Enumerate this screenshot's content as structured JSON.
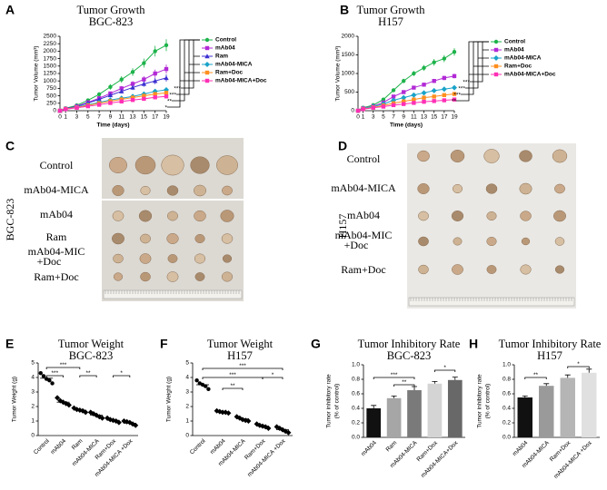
{
  "chart_data": [
    {
      "type": "line",
      "panel": "A",
      "title": "Tumor Growth",
      "subtitle": "BGC-823",
      "xlabel": "Time (days)",
      "ylabel": "Tumor Volume (mm³)",
      "x": [
        0,
        1,
        3,
        5,
        7,
        9,
        11,
        13,
        15,
        17,
        19
      ],
      "xlim": [
        0,
        19
      ],
      "xticks": [
        0,
        1,
        3,
        5,
        7,
        9,
        11,
        13,
        15,
        17,
        19
      ],
      "ylim": [
        0,
        2500
      ],
      "yticks": [
        0,
        250,
        500,
        750,
        1000,
        1250,
        1500,
        1750,
        2000,
        2250,
        2500
      ],
      "series": [
        {
          "name": "Control",
          "color": "#1db34a",
          "marker": "circle",
          "values": [
            0,
            80,
            180,
            350,
            550,
            800,
            1050,
            1300,
            1600,
            2000,
            2200
          ],
          "errors": [
            0,
            10,
            25,
            45,
            70,
            90,
            110,
            130,
            150,
            180,
            200
          ]
        },
        {
          "name": "mAb04",
          "color": "#b22ad6",
          "marker": "square",
          "values": [
            0,
            70,
            150,
            280,
            420,
            580,
            750,
            900,
            1050,
            1250,
            1400
          ],
          "errors": [
            0,
            10,
            20,
            35,
            50,
            65,
            80,
            95,
            110,
            130,
            150
          ]
        },
        {
          "name": "Ram",
          "color": "#3b2fd1",
          "marker": "triangle",
          "values": [
            0,
            70,
            140,
            260,
            380,
            520,
            650,
            780,
            900,
            1000,
            1100
          ],
          "errors": [
            0,
            10,
            20,
            30,
            45,
            60,
            70,
            85,
            95,
            110,
            120
          ]
        },
        {
          "name": "mAb04-MICA",
          "color": "#1aa3c9",
          "marker": "diamond",
          "values": [
            0,
            60,
            120,
            200,
            280,
            360,
            420,
            480,
            560,
            650,
            700
          ],
          "errors": [
            0,
            8,
            15,
            25,
            35,
            40,
            45,
            55,
            60,
            70,
            80
          ]
        },
        {
          "name": "Ram+Doc",
          "color": "#ff8f1f",
          "marker": "square",
          "values": [
            0,
            60,
            110,
            180,
            250,
            320,
            380,
            440,
            500,
            560,
            600
          ],
          "errors": [
            0,
            8,
            15,
            20,
            30,
            35,
            40,
            45,
            55,
            60,
            65
          ]
        },
        {
          "name": "mAb04-MICA+Doc",
          "color": "#ff2fb5",
          "marker": "square",
          "values": [
            0,
            50,
            100,
            150,
            200,
            260,
            310,
            360,
            400,
            450,
            480
          ],
          "errors": [
            0,
            6,
            12,
            18,
            25,
            30,
            35,
            40,
            45,
            50,
            55
          ]
        }
      ],
      "significance": [
        "***",
        "***",
        "**",
        "*"
      ]
    },
    {
      "type": "line",
      "panel": "B",
      "title": "Tumor Growth",
      "subtitle": "H157",
      "xlabel": "Time (days)",
      "ylabel": "Tumor Volume (mm³)",
      "x": [
        0,
        1,
        3,
        5,
        7,
        9,
        11,
        13,
        15,
        17,
        19
      ],
      "xlim": [
        0,
        19
      ],
      "xticks": [
        0,
        1,
        3,
        5,
        7,
        9,
        11,
        13,
        15,
        17,
        19
      ],
      "ylim": [
        0,
        2000
      ],
      "yticks": [
        0,
        500,
        1000,
        1500,
        2000
      ],
      "series": [
        {
          "name": "Control",
          "color": "#1db34a",
          "marker": "circle",
          "values": [
            0,
            80,
            150,
            300,
            550,
            800,
            1000,
            1150,
            1300,
            1400,
            1580
          ],
          "errors": [
            0,
            10,
            20,
            35,
            50,
            60,
            70,
            80,
            90,
            95,
            100
          ]
        },
        {
          "name": "mAb04",
          "color": "#b22ad6",
          "marker": "square",
          "values": [
            0,
            70,
            120,
            220,
            380,
            500,
            620,
            700,
            800,
            880,
            930
          ],
          "errors": [
            0,
            8,
            15,
            25,
            35,
            40,
            45,
            50,
            55,
            60,
            60
          ]
        },
        {
          "name": "mAb04-MICA",
          "color": "#1aa3c9",
          "marker": "diamond",
          "values": [
            0,
            60,
            110,
            180,
            280,
            350,
            420,
            480,
            540,
            580,
            620
          ],
          "errors": [
            0,
            8,
            12,
            20,
            30,
            35,
            40,
            45,
            50,
            55,
            55
          ]
        },
        {
          "name": "Ram+Doc",
          "color": "#ff8f1f",
          "marker": "square",
          "values": [
            0,
            50,
            90,
            140,
            200,
            250,
            300,
            350,
            380,
            420,
            450
          ],
          "errors": [
            0,
            6,
            10,
            15,
            25,
            30,
            35,
            40,
            45,
            50,
            50
          ]
        },
        {
          "name": "mAb04-MICA+Doc",
          "color": "#ff2fb5",
          "marker": "square",
          "values": [
            0,
            40,
            80,
            110,
            150,
            180,
            210,
            240,
            260,
            280,
            300
          ],
          "errors": [
            0,
            5,
            10,
            15,
            20,
            25,
            30,
            35,
            40,
            45,
            45
          ]
        }
      ],
      "significance": [
        "***",
        "***",
        "***",
        "**"
      ]
    },
    {
      "type": "dot",
      "panel": "E",
      "title": "Tumor Weight",
      "subtitle": "BGC-823",
      "ylabel": "Tumor Weight (g)",
      "categories": [
        "Control",
        "mAb04",
        "Ram",
        "mAb04-MICA",
        "Ram+Dox",
        "mAb04-MICA +Dox"
      ],
      "ylim": [
        0,
        5
      ],
      "yticks": [
        0,
        1,
        2,
        3,
        4,
        5
      ],
      "color": "#000000",
      "points": [
        [
          4.3,
          4.1,
          3.9,
          3.8,
          3.6
        ],
        [
          2.6,
          2.4,
          2.3,
          2.2,
          2.1
        ],
        [
          1.9,
          1.8,
          1.75,
          1.7,
          1.6
        ],
        [
          1.6,
          1.5,
          1.4,
          1.3,
          1.2
        ],
        [
          1.2,
          1.1,
          1.05,
          1.0,
          0.9
        ],
        [
          1.0,
          0.95,
          0.9,
          0.8,
          0.7
        ]
      ],
      "means": [
        3.95,
        2.3,
        1.75,
        1.4,
        1.05,
        0.85
      ],
      "significance": [
        "***",
        "***",
        "**",
        "*"
      ]
    },
    {
      "type": "dot",
      "panel": "F",
      "title": "Tumor Weight",
      "subtitle": "H157",
      "ylabel": "Tumor Weight (g)",
      "categories": [
        "Control",
        "mAb04",
        "mAb04-MICA",
        "Ram+Dox",
        "mAb04-MICA +Dox"
      ],
      "ylim": [
        0,
        5
      ],
      "yticks": [
        0,
        1,
        2,
        3,
        4,
        5
      ],
      "color": "#000000",
      "points": [
        [
          3.8,
          3.6,
          3.5,
          3.4,
          3.2
        ],
        [
          1.7,
          1.65,
          1.6,
          1.6,
          1.55
        ],
        [
          1.3,
          1.2,
          1.1,
          1.05,
          1.0
        ],
        [
          0.8,
          0.7,
          0.65,
          0.6,
          0.5
        ],
        [
          0.6,
          0.5,
          0.4,
          0.3,
          0.2
        ]
      ],
      "means": [
        3.5,
        1.6,
        1.15,
        0.65,
        0.4
      ],
      "significance": [
        "***",
        "***",
        "**",
        "*"
      ]
    },
    {
      "type": "bar",
      "panel": "G",
      "title": "Tumor Inhibitory Rate",
      "subtitle": "BGC-823",
      "ylabel": [
        "Tumor inhibitory rate",
        "(% of control)"
      ],
      "categories": [
        "mAb04",
        "Ram",
        "mAb04-MICA",
        "Ram+Dox",
        "mAb04-MICA+Dox"
      ],
      "values": [
        0.4,
        0.54,
        0.65,
        0.74,
        0.79
      ],
      "errors": [
        0.04,
        0.03,
        0.05,
        0.03,
        0.04
      ],
      "colors": [
        "#111111",
        "#a6a6a6",
        "#7a7a7a",
        "#d4d4d4",
        "#686868"
      ],
      "ylim": [
        0,
        1
      ],
      "yticks": [
        {
          "value": 0,
          "label": "0.0"
        },
        0.2,
        0.4,
        0.6,
        0.8,
        {
          "value": 1,
          "label": "1.0"
        }
      ],
      "significance": [
        "***",
        "**",
        "*"
      ]
    },
    {
      "type": "bar",
      "panel": "H",
      "title": "Tumor Inhibitory Rate",
      "subtitle": "H157",
      "ylabel": [
        "Tumor inhibitory rate",
        "(% of control)"
      ],
      "categories": [
        "mAb04",
        "mAb04-MICA",
        "Ram+Dox",
        "mAb04-MICA +Dox"
      ],
      "values": [
        0.55,
        0.71,
        0.82,
        0.89
      ],
      "errors": [
        0.02,
        0.03,
        0.04,
        0.05
      ],
      "colors": [
        "#111111",
        "#9a9a9a",
        "#b5b5b5",
        "#e0e0e0"
      ],
      "ylim": [
        0,
        1
      ],
      "yticks": [
        {
          "value": 0,
          "label": "0.0"
        },
        0.2,
        0.4,
        0.6,
        0.8,
        {
          "value": 1,
          "label": "1.0"
        }
      ],
      "significance": [
        "**",
        "*"
      ]
    }
  ],
  "photos": [
    {
      "panel": "C",
      "side_label": "BGC-823",
      "row_labels": [
        [
          "Control"
        ],
        [
          "mAb04-MICA"
        ],
        [
          "mAb04"
        ],
        [
          "Ram"
        ],
        [
          "mAb04-MIC",
          "+Doc"
        ],
        [
          "Ram+Doc"
        ]
      ]
    },
    {
      "panel": "D",
      "side_label": "H157",
      "row_labels": [
        [
          "Control"
        ],
        [
          "mAb04-MICA"
        ],
        [
          "mAb04"
        ],
        [
          "mAb04-MIC",
          "+Doc"
        ],
        [
          "Ram+Doc"
        ]
      ]
    }
  ]
}
